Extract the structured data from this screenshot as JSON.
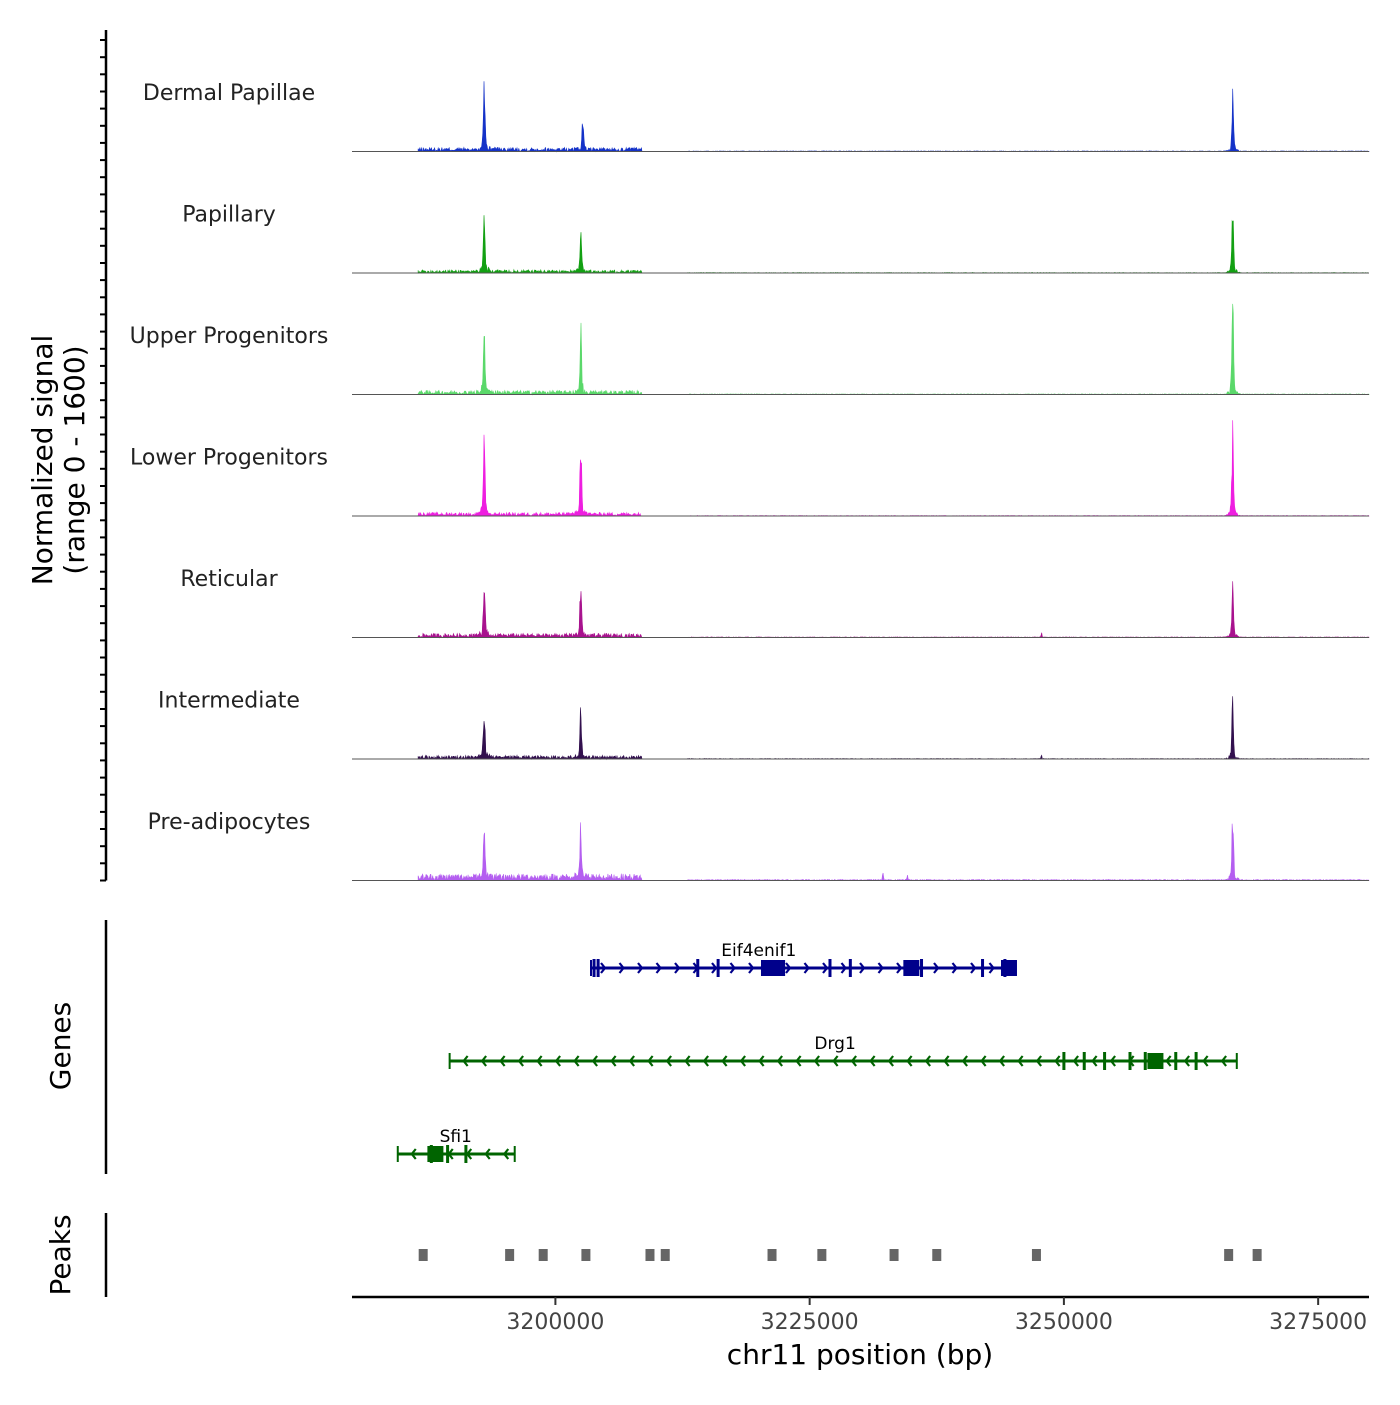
{
  "chart_data": {
    "type": "area",
    "title": "",
    "ylabel": "Normalized signal\n(range 0 - 1600)",
    "ylabel_lines": [
      "Normalized signal",
      "(range 0 - 1600)"
    ],
    "ylim": [
      0,
      1600
    ],
    "xlabel": "chr11 position (bp)",
    "xlim": [
      3180000,
      3280000
    ],
    "xticks": [
      3200000,
      3225000,
      3250000,
      3275000
    ],
    "xtick_labels": [
      "3200000",
      "3225000",
      "3250000",
      "3275000"
    ],
    "region": [
      3186500,
      3280000
    ],
    "background_regions": [
      [
        3186500,
        3208500
      ],
      [
        3213000,
        3280000
      ]
    ],
    "tracks": [
      {
        "name": "Dermal Papillae",
        "color": "#1432c8",
        "peaks": [
          [
            3193000,
            1550,
            500
          ],
          [
            3202700,
            780,
            450
          ],
          [
            3266600,
            1400,
            450
          ]
        ],
        "noise": 90
      },
      {
        "name": "Papillary",
        "color": "#12a012",
        "peaks": [
          [
            3193000,
            1580,
            500
          ],
          [
            3202500,
            1100,
            450
          ],
          [
            3266600,
            1700,
            450
          ]
        ],
        "noise": 70
      },
      {
        "name": "Upper Progenitors",
        "color": "#5ad86a",
        "peaks": [
          [
            3193000,
            1550,
            500
          ],
          [
            3202500,
            1600,
            450
          ],
          [
            3266600,
            2450,
            450
          ]
        ],
        "noise": 90
      },
      {
        "name": "Lower Progenitors",
        "color": "#ee1ee0",
        "peaks": [
          [
            3193000,
            1700,
            500
          ],
          [
            3202500,
            1800,
            450
          ],
          [
            3266600,
            2200,
            450
          ]
        ],
        "noise": 80
      },
      {
        "name": "Reticular",
        "color": "#a8128e",
        "peaks": [
          [
            3193000,
            1250,
            500
          ],
          [
            3202500,
            1450,
            450
          ],
          [
            3266600,
            1400,
            450
          ],
          [
            3247800,
            120,
            200
          ]
        ],
        "noise": 90
      },
      {
        "name": "Intermediate",
        "color": "#32104e",
        "peaks": [
          [
            3193000,
            1200,
            500
          ],
          [
            3202500,
            1150,
            450
          ],
          [
            3266600,
            1450,
            450
          ],
          [
            3247800,
            110,
            200
          ]
        ],
        "noise": 80
      },
      {
        "name": "Pre-adipocytes",
        "color": "#b45ef0",
        "peaks": [
          [
            3193000,
            1350,
            500
          ],
          [
            3202500,
            1250,
            450
          ],
          [
            3266600,
            1900,
            450
          ],
          [
            3232200,
            200,
            250
          ],
          [
            3234600,
            120,
            250
          ]
        ],
        "noise": 150
      }
    ],
    "genes_track_label": "Genes",
    "genes": [
      {
        "name": "Sfi1",
        "strand": "-",
        "color": "#006400",
        "start": 3184500,
        "end": 3196000,
        "exons": [
          3187800,
          3189400,
          3191200
        ],
        "big_exons": [
          3188200
        ],
        "label_pos": 3190200
      },
      {
        "name": "Drg1",
        "strand": "-",
        "color": "#006400",
        "start": 3189600,
        "end": 3267000,
        "exons": [
          3263000,
          3261000,
          3258000,
          3256500,
          3254000,
          3252000,
          3250000
        ],
        "big_exons": [
          3259000
        ],
        "label_pos": 3227500
      },
      {
        "name": "Eif4enif1",
        "strand": "+",
        "color": "#00008b",
        "start": 3203500,
        "end": 3245000,
        "exons": [
          3203800,
          3204200,
          3214000,
          3216000,
          3227000,
          3229000,
          3236000,
          3242000,
          3244200
        ],
        "big_exons": [
          3221000,
          3221800,
          3235000,
          3244600
        ],
        "label_pos": 3220000
      }
    ],
    "peaks_track_label": "Peaks",
    "peak_regions": [
      3187000,
      3195500,
      3198800,
      3203000,
      3209300,
      3210800,
      3221300,
      3226200,
      3233300,
      3237500,
      3247300,
      3266200,
      3269000
    ],
    "peak_color": "#666666"
  }
}
